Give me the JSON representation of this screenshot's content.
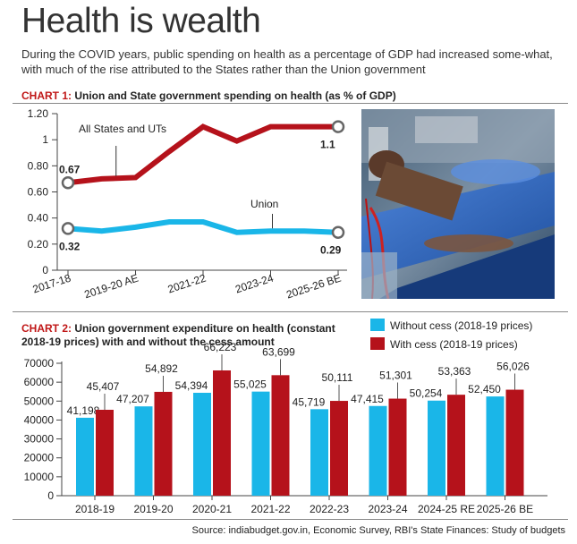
{
  "headline": "Health is wealth",
  "intro": "During the COVID years, public spending on health as a percentage of GDP had increased some-what, with much of the rise attributed to the States rather than the Union government",
  "chart1_heading": {
    "prefix": "CHART 1:",
    "text": "Union and State government spending on health (as % of GDP)"
  },
  "chart2_heading": {
    "prefix": "CHART 2:",
    "text": "Union government expenditure on health (constant 2018-19 prices) with and without the cess amount"
  },
  "photo": {
    "description": "Patients on hospital beds receiving dialysis"
  },
  "colors": {
    "states": "#b5121b",
    "union": "#1ab6e8",
    "without_cess": "#1ab6e8",
    "with_cess": "#b5121b",
    "accent": "#c01717"
  },
  "source": "Source: indiabudget.gov.in, Economic Survey, RBI's State Finances: Study of budgets",
  "chart_data": [
    {
      "type": "line",
      "title": "Union and State government spending on health (as % of GDP)",
      "x": [
        "2017-18",
        "2018-19",
        "2019-20 AE",
        "2020-21",
        "2021-22",
        "2022-23",
        "2023-24",
        "2024-25",
        "2025-26 BE"
      ],
      "x_tick_labels": [
        "2017-18",
        "2019-20 AE",
        "2021-22",
        "2023-24",
        "2025-26 BE"
      ],
      "series": [
        {
          "name": "All States and UTs",
          "values": [
            0.67,
            0.7,
            0.71,
            0.91,
            1.1,
            0.99,
            1.1,
            1.1,
            1.1
          ]
        },
        {
          "name": "Union",
          "values": [
            0.32,
            0.3,
            0.33,
            0.37,
            0.37,
            0.29,
            0.3,
            0.3,
            0.29
          ]
        }
      ],
      "point_labels": [
        {
          "series": "All States and UTs",
          "x": "2017-18",
          "text": "0.67"
        },
        {
          "series": "All States and UTs",
          "x": "2025-26 BE",
          "text": "1.1"
        },
        {
          "series": "Union",
          "x": "2017-18",
          "text": "0.32"
        },
        {
          "series": "Union",
          "x": "2025-26 BE",
          "text": "0.29"
        }
      ],
      "y_ticks": [
        "0",
        "0.20",
        "0.40",
        "0.60",
        "0.80",
        "1",
        "1.20"
      ],
      "ylim": [
        0,
        1.2
      ],
      "xlabel": "",
      "ylabel": ""
    },
    {
      "type": "bar",
      "title": "Union government expenditure on health (constant 2018-19 prices) with and without the cess amount",
      "categories": [
        "2018-19",
        "2019-20",
        "2020-21",
        "2021-22",
        "2022-23",
        "2023-24",
        "2024-25 RE",
        "2025-26 BE"
      ],
      "series": [
        {
          "name": "Without cess (2018-19 prices)",
          "values": [
            41198,
            47207,
            54394,
            55025,
            45719,
            47415,
            50254,
            52450
          ],
          "labels": [
            "41,198",
            "47,207",
            "54,394",
            "55,025",
            "45,719",
            "47,415",
            "50,254",
            "52,450"
          ]
        },
        {
          "name": "With cess (2018-19 prices)",
          "values": [
            45407,
            54892,
            66223,
            63699,
            50111,
            51301,
            53363,
            56026
          ],
          "labels": [
            "45,407",
            "54,892",
            "66,223",
            "63,699",
            "50,111",
            "51,301",
            "53,363",
            "56,026"
          ]
        }
      ],
      "y_ticks": [
        "0",
        "10000",
        "20000",
        "30000",
        "40000",
        "50000",
        "60000",
        "70000"
      ],
      "ylim": [
        0,
        70000
      ],
      "xlabel": "",
      "ylabel": ""
    }
  ]
}
